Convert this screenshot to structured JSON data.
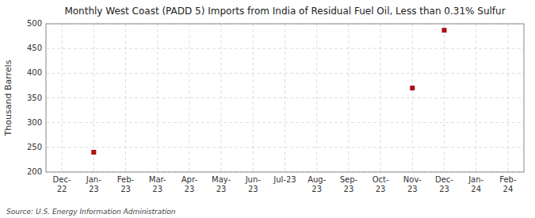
{
  "chart_data": {
    "type": "scatter",
    "title": "Monthly West Coast (PADD 5) Imports from India of Residual Fuel Oil, Less than 0.31% Sulfur",
    "ylabel": "Thousand Barrels",
    "source": "Source: U.S. Energy Information Administration",
    "categories": [
      "Dec-\n22",
      "Jan-\n23",
      "Feb-\n23",
      "Mar-\n23",
      "Apr-\n23",
      "May-\n23",
      "Jun-\n23",
      "Jul-23",
      "Aug-\n23",
      "Sep-\n23",
      "Oct-\n23",
      "Nov-\n23",
      "Dec-\n23",
      "Jan-\n24",
      "Feb-\n24"
    ],
    "values": [
      null,
      240,
      null,
      null,
      null,
      null,
      null,
      null,
      null,
      null,
      null,
      370,
      487,
      null,
      null
    ],
    "color": "#aa1111",
    "marker": "square",
    "ylim": [
      200,
      500
    ],
    "yticks": [
      200,
      250,
      300,
      350,
      400,
      450,
      500
    ],
    "grid": true
  }
}
